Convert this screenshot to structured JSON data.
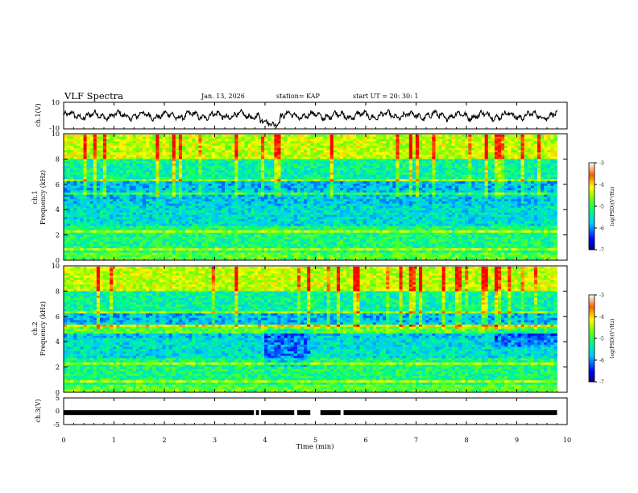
{
  "header": {
    "title": "VLF Spectra",
    "date": "Jan. 13, 2026",
    "station": "station= KAP",
    "start": "start UT =  20: 30: 1"
  },
  "chart_data": {
    "type": "heatmap",
    "description_axes": {
      "xlabel": "Time (min)",
      "xlim": [
        0,
        10
      ],
      "xticks": [
        "0",
        "1",
        "2",
        "3",
        "4",
        "5",
        "6",
        "7",
        "8",
        "9",
        "10"
      ]
    },
    "panels": [
      {
        "id": "ch1",
        "type": "line",
        "ylabel": "ch.1(V)",
        "ylim": [
          -10,
          10
        ],
        "yticks": [
          "10",
          "-10"
        ],
        "series_summary": "noisy waveform oscillating roughly between -5 and +5 V with a dip near 4.0 min"
      },
      {
        "id": "ch1-spectrogram",
        "type": "heatmap",
        "ylabel_line1": "ch.1",
        "ylabel_line2": "Frequency (kHz)",
        "ylim": [
          0,
          10
        ],
        "yticks": [
          "0",
          "2",
          "4",
          "6",
          "8",
          "10"
        ],
        "colorbar": {
          "label": "log(PSD)(V²/Hz)",
          "range": [
            -7,
            -3
          ],
          "ticks": [
            "-3",
            "-4",
            "-5",
            "-6",
            "-7"
          ]
        }
      },
      {
        "id": "ch2-spectrogram",
        "type": "heatmap",
        "ylabel_line1": "ch.2",
        "ylabel_line2": "Frequency (kHz)",
        "ylim": [
          0,
          10
        ],
        "yticks": [
          "0",
          "2",
          "4",
          "6",
          "8",
          "10"
        ],
        "colorbar": {
          "label": "log(PSD)(V²/Hz)",
          "range": [
            -7,
            -3
          ],
          "ticks": [
            "-3",
            "-4",
            "-5",
            "-6",
            "-7"
          ]
        }
      },
      {
        "id": "ch3",
        "type": "line",
        "ylabel": "ch.3(V)",
        "ylim": [
          -5,
          5
        ],
        "yticks": [
          "5",
          "0",
          "-5"
        ],
        "series_summary": "flat signal near -0.5 V with brief gaps near 3.8, 4.6, 4.9-5.1, 5.5 min",
        "gaps_min": [
          [
            3.78,
            3.82
          ],
          [
            3.88,
            3.92
          ],
          [
            4.58,
            4.64
          ],
          [
            4.9,
            5.1
          ],
          [
            5.5,
            5.56
          ]
        ]
      }
    ]
  }
}
